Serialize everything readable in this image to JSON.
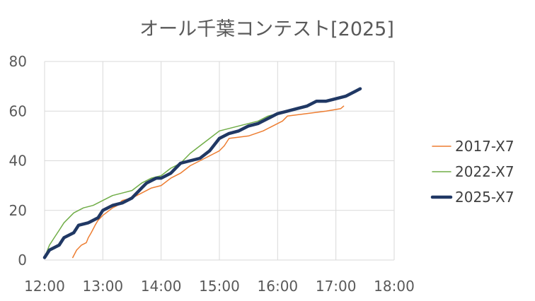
{
  "chart_data": {
    "type": "line",
    "title": "オール千葉コンテスト[2025]",
    "xlabel": "",
    "ylabel": "",
    "x_ticks": [
      "12:00",
      "13:00",
      "14:00",
      "15:00",
      "16:00",
      "17:00",
      "18:00"
    ],
    "y_ticks": [
      "0",
      "20",
      "40",
      "60",
      "80"
    ],
    "xlim": [
      "12:00",
      "18:00"
    ],
    "ylim": [
      0,
      80
    ],
    "grid": true,
    "legend_position": "right",
    "series": [
      {
        "name": "2017-X7",
        "color": "#ed7d31",
        "line_width": "thin",
        "points": [
          [
            "12:29",
            1
          ],
          [
            "12:33",
            4
          ],
          [
            "12:38",
            6
          ],
          [
            "12:43",
            7
          ],
          [
            "12:45",
            9
          ],
          [
            "12:48",
            11
          ],
          [
            "12:52",
            14
          ],
          [
            "12:55",
            16
          ],
          [
            "13:00",
            18
          ],
          [
            "13:10",
            21
          ],
          [
            "13:15",
            22
          ],
          [
            "13:20",
            24
          ],
          [
            "13:30",
            25
          ],
          [
            "13:40",
            27
          ],
          [
            "13:50",
            29
          ],
          [
            "14:00",
            30
          ],
          [
            "14:10",
            33
          ],
          [
            "14:20",
            35
          ],
          [
            "14:30",
            38
          ],
          [
            "14:40",
            40
          ],
          [
            "14:50",
            42
          ],
          [
            "15:00",
            44
          ],
          [
            "15:05",
            46
          ],
          [
            "15:10",
            49
          ],
          [
            "15:30",
            50
          ],
          [
            "15:45",
            52
          ],
          [
            "15:55",
            54
          ],
          [
            "16:05",
            56
          ],
          [
            "16:10",
            58
          ],
          [
            "16:30",
            59
          ],
          [
            "16:50",
            60
          ],
          [
            "17:05",
            61
          ],
          [
            "17:08",
            62
          ]
        ]
      },
      {
        "name": "2022-X7",
        "color": "#70ad47",
        "line_width": "thin",
        "points": [
          [
            "12:00",
            1
          ],
          [
            "12:05",
            6
          ],
          [
            "12:10",
            9
          ],
          [
            "12:15",
            12
          ],
          [
            "12:20",
            15
          ],
          [
            "12:25",
            17
          ],
          [
            "12:30",
            19
          ],
          [
            "12:40",
            21
          ],
          [
            "12:50",
            22
          ],
          [
            "13:00",
            24
          ],
          [
            "13:10",
            26
          ],
          [
            "13:20",
            27
          ],
          [
            "13:30",
            28
          ],
          [
            "13:40",
            31
          ],
          [
            "13:50",
            33
          ],
          [
            "14:00",
            34
          ],
          [
            "14:10",
            37
          ],
          [
            "14:20",
            39
          ],
          [
            "14:30",
            43
          ],
          [
            "14:40",
            46
          ],
          [
            "14:50",
            49
          ],
          [
            "15:00",
            52
          ],
          [
            "15:10",
            53
          ],
          [
            "15:20",
            54
          ],
          [
            "15:30",
            55
          ],
          [
            "15:40",
            56
          ],
          [
            "15:50",
            58
          ],
          [
            "16:00",
            59
          ],
          [
            "16:10",
            60
          ],
          [
            "16:20",
            61
          ],
          [
            "16:30",
            62
          ],
          [
            "16:35",
            63
          ]
        ]
      },
      {
        "name": "2025-X7",
        "color": "#203864",
        "line_width": "thick",
        "points": [
          [
            "12:00",
            1
          ],
          [
            "12:05",
            4
          ],
          [
            "12:15",
            6
          ],
          [
            "12:20",
            9
          ],
          [
            "12:30",
            11
          ],
          [
            "12:35",
            14
          ],
          [
            "12:45",
            15
          ],
          [
            "12:55",
            17
          ],
          [
            "13:00",
            20
          ],
          [
            "13:10",
            22
          ],
          [
            "13:20",
            23
          ],
          [
            "13:30",
            25
          ],
          [
            "13:40",
            29
          ],
          [
            "13:45",
            31
          ],
          [
            "13:55",
            33
          ],
          [
            "14:00",
            33
          ],
          [
            "14:10",
            35
          ],
          [
            "14:20",
            39
          ],
          [
            "14:30",
            40
          ],
          [
            "14:40",
            41
          ],
          [
            "14:50",
            44
          ],
          [
            "15:00",
            49
          ],
          [
            "15:10",
            51
          ],
          [
            "15:20",
            52
          ],
          [
            "15:30",
            54
          ],
          [
            "15:40",
            55
          ],
          [
            "15:50",
            57
          ],
          [
            "16:00",
            59
          ],
          [
            "16:10",
            60
          ],
          [
            "16:20",
            61
          ],
          [
            "16:30",
            62
          ],
          [
            "16:40",
            64
          ],
          [
            "16:50",
            64
          ],
          [
            "17:00",
            65
          ],
          [
            "17:10",
            66
          ],
          [
            "17:20",
            68
          ],
          [
            "17:25",
            69
          ]
        ]
      }
    ]
  }
}
